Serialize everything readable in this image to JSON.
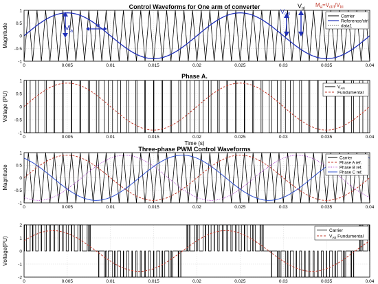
{
  "chart_data": [
    {
      "type": "line",
      "title": "Control Waveforms for One arm of converter",
      "xlabel": "",
      "ylabel": "Magnitude",
      "xlim": [
        0,
        0.04
      ],
      "ylim": [
        -1,
        1
      ],
      "xticks": [
        "0",
        "0.005",
        "0.01",
        "0.015",
        "0.02",
        "0.025",
        "0.03",
        "0.035",
        "0.04"
      ],
      "yticks": [
        "-1",
        "-0.5",
        "0",
        "0.5",
        "1"
      ],
      "grid": true,
      "legend_position": "top-right",
      "carrier_cycles": 40,
      "series": [
        {
          "name": "Carrier",
          "kind": "triangle",
          "color": "#000000",
          "amplitude": 1,
          "frequency_hz": 1000
        },
        {
          "name": "Reference/ctrl",
          "kind": "sine",
          "color": "#1f2fb8",
          "amplitude": 0.9,
          "frequency_hz": 50,
          "phase_deg": 0
        },
        {
          "name": "data1",
          "kind": "marker",
          "color": "#7f7f7f"
        }
      ],
      "annotations": {
        "ma_main": "M",
        "ma_sub": "a",
        "phi": "φ",
        "vctrl_main": "V",
        "vctrl_sub": "ctrl",
        "vtri_main": "V",
        "vtri_sub": "tri",
        "formula_a": "M",
        "formula_b": "a",
        "formula_c": "=V",
        "formula_d": "ctrl",
        "formula_e": "/V",
        "formula_f": "tri"
      }
    },
    {
      "type": "line",
      "title": "Phase A.",
      "xlabel": "Time (s)",
      "ylabel": "Voltage (PU)",
      "xlim": [
        0,
        0.04
      ],
      "ylim": [
        -1,
        1
      ],
      "xticks": [
        "0",
        "0.005",
        "0.01",
        "0.015",
        "0.02",
        "0.025",
        "0.03",
        "0.035",
        "0.04"
      ],
      "yticks": [
        "-1",
        "-0.5",
        "0",
        "0.5",
        "1"
      ],
      "grid": true,
      "legend_position": "top-right",
      "series": [
        {
          "name_main": "V",
          "name_sub": "AN",
          "kind": "pwm",
          "color": "#000000",
          "levels": [
            -1,
            1
          ]
        },
        {
          "name": "Fundumental",
          "kind": "sine",
          "color": "#c0392b",
          "dashed": true,
          "amplitude": 0.9,
          "frequency_hz": 50,
          "phase_deg": 0
        }
      ]
    },
    {
      "type": "line",
      "title": "Three-phase PWM Control Waveforms",
      "xlabel": "",
      "ylabel": "Magnitude",
      "xlim": [
        0,
        0.04
      ],
      "ylim": [
        -1,
        1
      ],
      "xticks": [
        "0",
        "0.005",
        "0.01",
        "0.015",
        "0.02",
        "0.025",
        "0.03",
        "0.035",
        "0.04"
      ],
      "yticks": [
        "-1",
        "-0.5",
        "0",
        "0.5",
        "1"
      ],
      "grid": true,
      "legend_position": "top-right",
      "series": [
        {
          "name": "Carrier",
          "kind": "triangle",
          "color": "#000000",
          "amplitude": 1
        },
        {
          "name": "Phase A ref.",
          "kind": "sine",
          "color": "#c0392b",
          "dashed": true,
          "amplitude": 0.9,
          "frequency_hz": 50,
          "phase_deg": 0
        },
        {
          "name": "Phase B ref.",
          "kind": "sine",
          "color": "#b040d0",
          "dotted": true,
          "amplitude": 0.9,
          "frequency_hz": 50,
          "phase_deg": -120
        },
        {
          "name": "Phase C ref.",
          "kind": "sine",
          "color": "#3050d0",
          "amplitude": 0.9,
          "frequency_hz": 50,
          "phase_deg": 120
        }
      ]
    },
    {
      "type": "line",
      "title": "",
      "xlabel": "",
      "ylabel": "Voltage(PU)",
      "xlim": [
        0,
        0.04
      ],
      "ylim": [
        -2,
        2
      ],
      "xticks": [
        "0",
        "0.005",
        "0.01",
        "0.015",
        "0.02",
        "0.025",
        "0.03",
        "0.035",
        "0.04"
      ],
      "yticks": [
        "-2",
        "-1",
        "0",
        "1",
        "2"
      ],
      "grid": true,
      "legend_position": "top-right",
      "series": [
        {
          "name": "Carrier",
          "kind": "pwm_line",
          "color": "#000000",
          "levels": [
            -2,
            -1,
            0,
            1,
            2
          ]
        },
        {
          "name_main": "V",
          "name_sub": "AB",
          "name_after": " Fundumental",
          "kind": "sine",
          "color": "#c0392b",
          "dashed": true,
          "amplitude": 1.56,
          "frequency_hz": 50,
          "phase_deg": 30
        }
      ]
    }
  ]
}
